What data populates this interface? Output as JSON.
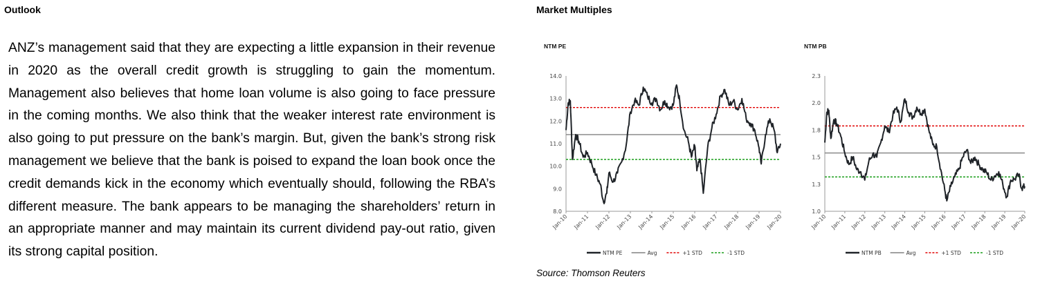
{
  "outlook": {
    "heading": "Outlook",
    "paragraph": "ANZ’s management said that they are expecting a little expansion in their revenue in 2020 as the overall credit growth is struggling to gain the momentum. Management also believes that home loan volume is also going to face pressure in the coming months. We also think that the weaker interest rate environment is also going to put pressure on the bank’s margin. But, given the bank’s strong risk management we believe that the bank is poised to expand the loan book once the credit demands kick in the economy which eventually should, following the RBA’s different measure. The bank appears to be managing the shareholders’ return in an appropriate manner and may maintain its current dividend pay-out ratio, given its strong capital position."
  },
  "multiples": {
    "heading": "Market Multiples",
    "source": "Source: Thomson Reuters"
  },
  "colors": {
    "series": "#1f2328",
    "avg": "#808080",
    "plus_std": "#e00000",
    "minus_std": "#1a9e1a",
    "axis": "#9a9a9a"
  },
  "chart_data": [
    {
      "type": "line",
      "title": "NTM PE",
      "ylim": [
        8.0,
        14.0
      ],
      "yticks": [
        "8.0",
        "9.0",
        "10.0",
        "11.0",
        "12.0",
        "13.0",
        "14.0"
      ],
      "ytick_values": [
        8,
        9,
        10,
        11,
        12,
        13,
        14
      ],
      "categories": [
        "Jan-10",
        "Jan-11",
        "Jan-12",
        "Jan-13",
        "Jan-14",
        "Jan-15",
        "Jan-16",
        "Jan-17",
        "Jan-18",
        "Jan-19",
        "Jan-20"
      ],
      "x": [
        2010.0,
        2010.1,
        2010.2,
        2010.3,
        2010.45,
        2010.6,
        2010.8,
        2011.0,
        2011.2,
        2011.4,
        2011.6,
        2011.75,
        2011.9,
        2012.0,
        2012.2,
        2012.4,
        2012.6,
        2012.8,
        2013.0,
        2013.2,
        2013.4,
        2013.6,
        2013.8,
        2014.0,
        2014.2,
        2014.4,
        2014.6,
        2014.8,
        2015.0,
        2015.15,
        2015.3,
        2015.5,
        2015.7,
        2015.85,
        2016.0,
        2016.1,
        2016.25,
        2016.4,
        2016.6,
        2016.8,
        2017.0,
        2017.2,
        2017.4,
        2017.6,
        2017.8,
        2018.0,
        2018.2,
        2018.4,
        2018.6,
        2018.8,
        2019.0,
        2019.1,
        2019.3,
        2019.5,
        2019.7,
        2019.85,
        2020.0
      ],
      "y": [
        11.6,
        12.8,
        12.9,
        10.3,
        11.4,
        11.1,
        10.4,
        10.6,
        10.1,
        9.6,
        9.2,
        8.4,
        8.8,
        9.7,
        9.3,
        9.7,
        10.2,
        10.9,
        12.4,
        12.9,
        12.7,
        13.5,
        13.1,
        12.8,
        13.0,
        12.5,
        12.9,
        12.6,
        12.7,
        13.6,
        12.9,
        11.6,
        11.1,
        10.4,
        10.9,
        9.8,
        10.3,
        8.8,
        10.8,
        11.7,
        12.3,
        13.1,
        13.4,
        12.7,
        12.9,
        12.5,
        13.0,
        12.1,
        11.9,
        11.6,
        10.8,
        10.1,
        11.4,
        12.1,
        11.6,
        10.6,
        11.0
      ],
      "lines": {
        "avg": 11.4,
        "plus_std": 12.6,
        "minus_std": 10.3
      },
      "legend": [
        "NTM PE",
        "Avg",
        "+1 STD",
        "-1 STD"
      ]
    },
    {
      "type": "line",
      "title": "NTM PB",
      "ylim": [
        1.0,
        2.3
      ],
      "yticks": [
        "1.0",
        "1.3",
        "1.5",
        "1.8",
        "2.0",
        "2.3"
      ],
      "ytick_values": [
        1.0,
        1.26,
        1.52,
        1.78,
        2.04,
        2.3
      ],
      "categories": [
        "Jan-10",
        "Jan-11",
        "Jan-12",
        "Jan-13",
        "Jan-14",
        "Jan-15",
        "Jan-16",
        "Jan-17",
        "Jan-18",
        "Jan-19",
        "Jan-20"
      ],
      "x": [
        2010.0,
        2010.1,
        2010.2,
        2010.3,
        2010.45,
        2010.6,
        2010.8,
        2011.0,
        2011.2,
        2011.4,
        2011.6,
        2011.8,
        2012.0,
        2012.2,
        2012.4,
        2012.6,
        2012.8,
        2013.0,
        2013.2,
        2013.4,
        2013.6,
        2013.8,
        2014.0,
        2014.2,
        2014.4,
        2014.6,
        2014.8,
        2015.0,
        2015.2,
        2015.4,
        2015.6,
        2015.8,
        2016.0,
        2016.1,
        2016.3,
        2016.5,
        2016.7,
        2016.9,
        2017.1,
        2017.3,
        2017.5,
        2017.7,
        2017.9,
        2018.1,
        2018.3,
        2018.5,
        2018.7,
        2018.9,
        2019.1,
        2019.3,
        2019.5,
        2019.7,
        2019.85,
        2020.0
      ],
      "y": [
        1.66,
        1.95,
        1.97,
        1.7,
        1.88,
        1.84,
        1.72,
        1.56,
        1.45,
        1.52,
        1.4,
        1.38,
        1.3,
        1.48,
        1.55,
        1.52,
        1.66,
        1.82,
        1.76,
        1.92,
        2.0,
        1.86,
        2.08,
        1.95,
        1.9,
        2.0,
        1.94,
        1.98,
        1.78,
        1.64,
        1.62,
        1.4,
        1.2,
        1.1,
        1.24,
        1.33,
        1.4,
        1.52,
        1.59,
        1.46,
        1.52,
        1.45,
        1.4,
        1.37,
        1.3,
        1.34,
        1.38,
        1.26,
        1.14,
        1.3,
        1.31,
        1.35,
        1.22,
        1.24
      ],
      "lines": {
        "avg": 1.56,
        "plus_std": 1.82,
        "minus_std": 1.33
      },
      "legend": [
        "NTM PB",
        "Avg",
        "+1 STD",
        "-1 STD"
      ]
    }
  ]
}
